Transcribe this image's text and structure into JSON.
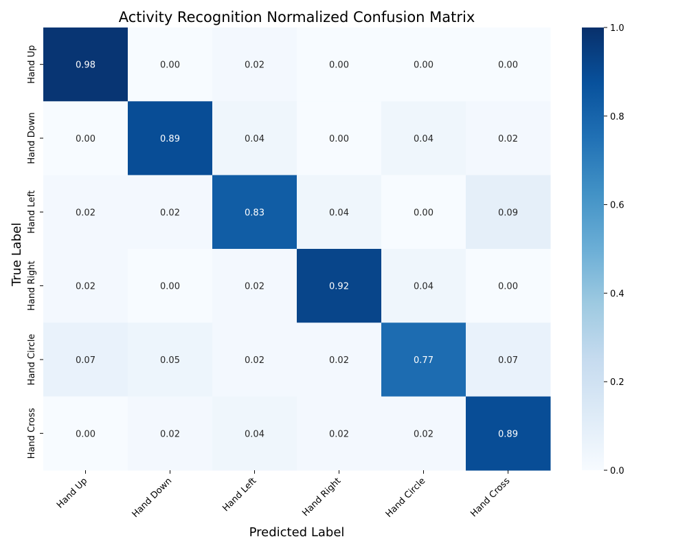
{
  "chart_data": {
    "type": "heatmap",
    "title": "Activity Recognition Normalized Confusion Matrix",
    "xlabel": "Predicted Label",
    "ylabel": "True Label",
    "x_categories": [
      "Hand Up",
      "Hand Down",
      "Hand Left",
      "Hand Right",
      "Hand Circle",
      "Hand Cross"
    ],
    "y_categories": [
      "Hand Up",
      "Hand Down",
      "Hand Left",
      "Hand Right",
      "Hand Circle",
      "Hand Cross"
    ],
    "values": [
      [
        0.98,
        0.0,
        0.02,
        0.0,
        0.0,
        0.0
      ],
      [
        0.0,
        0.89,
        0.04,
        0.0,
        0.04,
        0.02
      ],
      [
        0.02,
        0.02,
        0.83,
        0.04,
        0.0,
        0.09
      ],
      [
        0.02,
        0.0,
        0.02,
        0.92,
        0.04,
        0.0
      ],
      [
        0.07,
        0.05,
        0.02,
        0.02,
        0.77,
        0.07
      ],
      [
        0.0,
        0.02,
        0.04,
        0.02,
        0.02,
        0.89
      ]
    ],
    "vmin": 0.0,
    "vmax": 1.0,
    "colormap": "Blues",
    "colorbar_ticks": [
      "0.0",
      "0.2",
      "0.4",
      "0.6",
      "0.8",
      "1.0"
    ],
    "grid": false
  }
}
